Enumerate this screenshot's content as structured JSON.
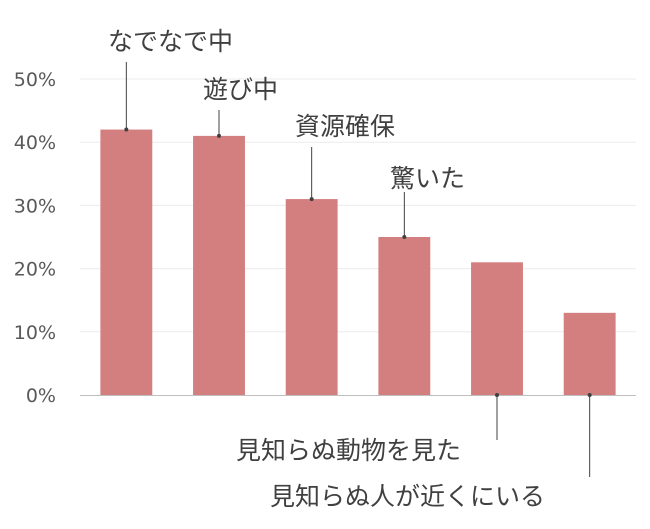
{
  "chart_data": {
    "type": "bar",
    "categories": [
      "なでなで中",
      "遊び中",
      "資源確保",
      "驚いた",
      "見知らぬ動物を見た",
      "見知らぬ人が近くにいる"
    ],
    "values": [
      42,
      41,
      31,
      25,
      21,
      13
    ],
    "ylim": [
      0,
      50
    ],
    "yticks": [
      "0%",
      "10%",
      "20%",
      "30%",
      "40%",
      "50%"
    ],
    "ytick_values": [
      0,
      10,
      20,
      30,
      40,
      50
    ],
    "grid": true,
    "legend": "none",
    "colors": {
      "bar": "#d47f7f",
      "grid": "#ececec",
      "axis": "#bfbfbf",
      "leader": "#404040"
    }
  }
}
